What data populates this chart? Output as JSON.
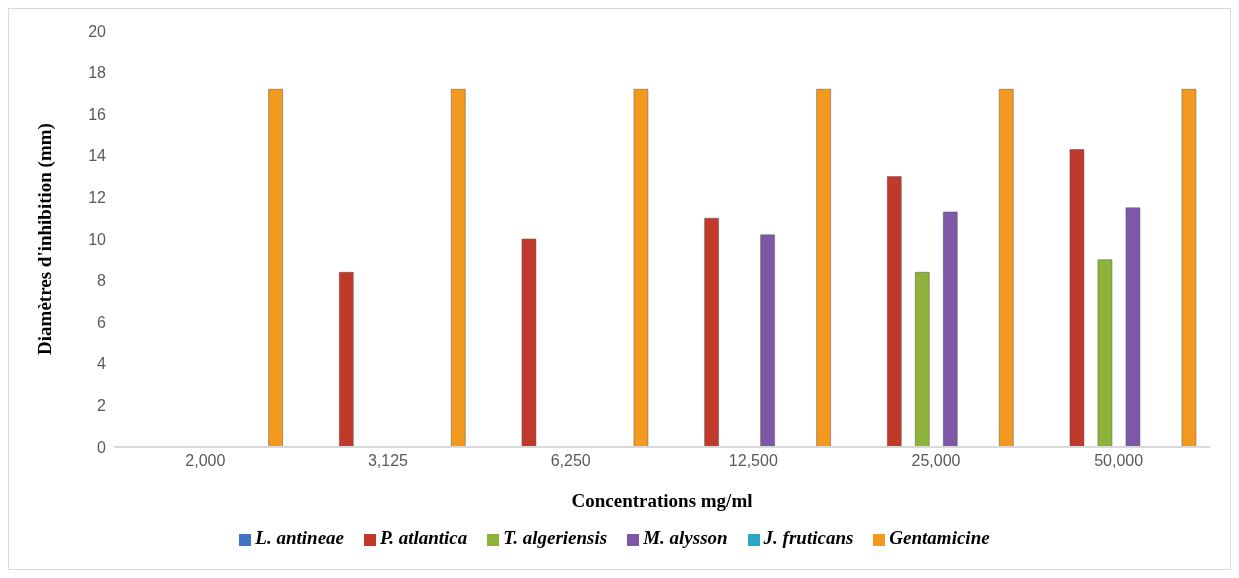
{
  "chart_data": {
    "type": "bar",
    "xlabel": "Concentrations mg/ml",
    "ylabel": "Diamètres d'inhibition (mm)",
    "categories": [
      "2,000",
      "3,125",
      "6,250",
      "12,500",
      "25,000",
      "50,000"
    ],
    "series": [
      {
        "name": "L. antineae",
        "color": "#4472c4",
        "values": [
          0,
          0,
          0,
          0,
          0,
          0
        ]
      },
      {
        "name": "P. atlantica",
        "color": "#c0392b",
        "values": [
          0,
          8.4,
          10,
          11,
          13,
          14.3
        ]
      },
      {
        "name": "T. algeriensis",
        "color": "#8db33a",
        "values": [
          0,
          0,
          0,
          0,
          8.4,
          9
        ]
      },
      {
        "name": "M. alysson",
        "color": "#7e57a8",
        "values": [
          0,
          0,
          0,
          10.2,
          11.3,
          11.5
        ]
      },
      {
        "name": "J. fruticans",
        "color": "#2aa7c4",
        "values": [
          0,
          0,
          0,
          0,
          0,
          0
        ]
      },
      {
        "name": "Gentamicine",
        "color": "#f39a1e",
        "values": [
          17.2,
          17.2,
          17.2,
          17.2,
          17.2,
          17.2
        ]
      }
    ],
    "ylim": [
      0,
      20
    ],
    "yticks": [
      0,
      2,
      4,
      6,
      8,
      10,
      12,
      14,
      16,
      18,
      20
    ],
    "grid": false,
    "legend": "bottom"
  }
}
